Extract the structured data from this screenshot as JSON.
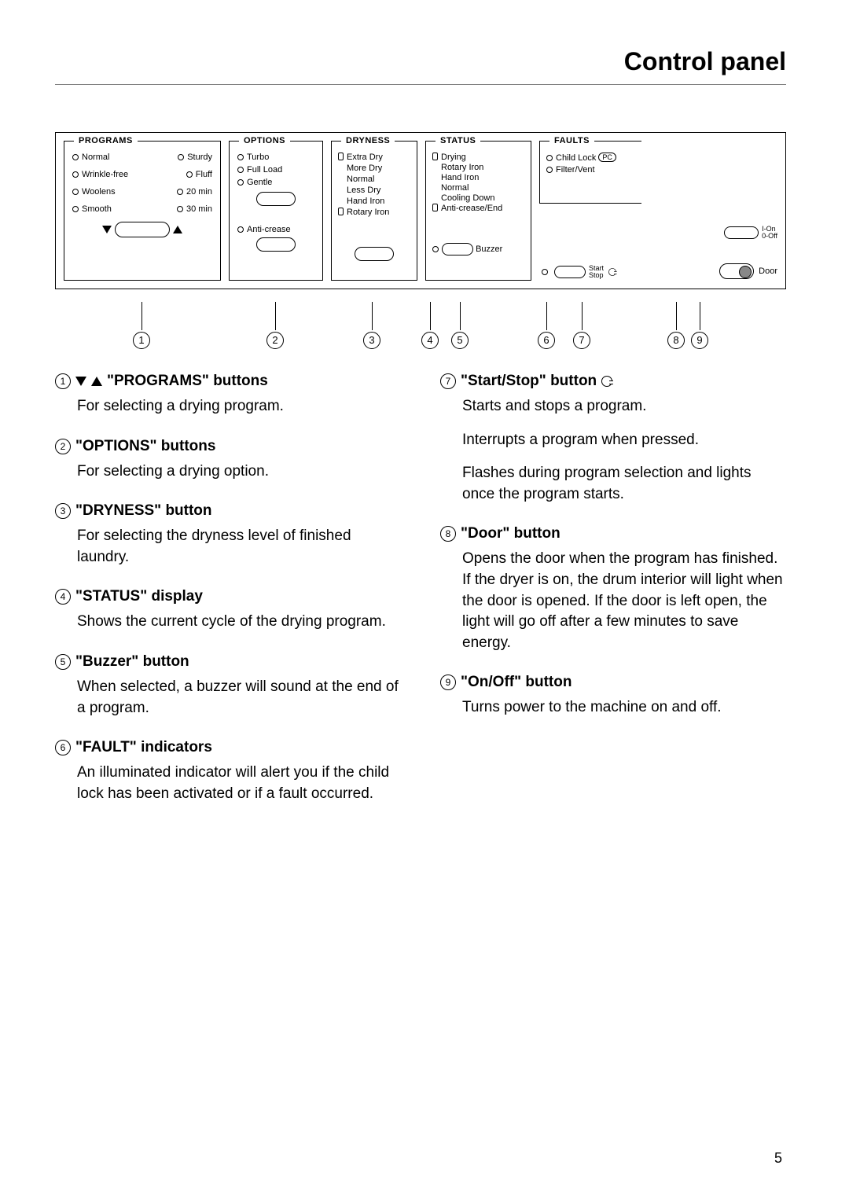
{
  "title": "Control panel",
  "pageNumber": "5",
  "diagram": {
    "programs": {
      "header": "PROGRAMS",
      "rows": [
        [
          "Normal",
          "Sturdy"
        ],
        [
          "Wrinkle-free",
          "Fluff"
        ],
        [
          "Woolens",
          "20 min"
        ],
        [
          "Smooth",
          "30 min"
        ]
      ]
    },
    "options": {
      "header": "OPTIONS",
      "items": [
        "Turbo",
        "Full Load",
        "Gentle"
      ],
      "anticrease": "Anti-crease"
    },
    "dryness": {
      "header": "DRYNESS",
      "items": [
        "Extra Dry",
        "More Dry",
        "Normal",
        "Less Dry",
        "Hand Iron",
        "Rotary Iron"
      ]
    },
    "status": {
      "header": "STATUS",
      "items": [
        "Drying",
        "Rotary Iron",
        "Hand Iron",
        "Normal",
        "Cooling Down",
        "Anti-crease/End"
      ],
      "buzzer": "Buzzer"
    },
    "faults": {
      "header": "FAULTS",
      "childlock": "Child Lock",
      "pc": "PC",
      "filter": "Filter/Vent",
      "startstop": "Start\nStop",
      "onoff_on": "I-On",
      "onoff_off": "0-Off",
      "door": "Door"
    }
  },
  "callouts": [
    "1",
    "2",
    "3",
    "4",
    "5",
    "6",
    "7",
    "8",
    "9"
  ],
  "legend": {
    "left": [
      {
        "num": "1",
        "title": "\"PROGRAMS\" buttons",
        "hasArrows": true,
        "body": [
          "For selecting a drying program."
        ]
      },
      {
        "num": "2",
        "title": "\"OPTIONS\" buttons",
        "body": [
          "For selecting a drying option."
        ]
      },
      {
        "num": "3",
        "title": "\"DRYNESS\" button",
        "body": [
          "For selecting the dryness level of finished laundry."
        ]
      },
      {
        "num": "4",
        "title": "\"STATUS\" display",
        "body": [
          "Shows the current cycle of the drying program."
        ]
      },
      {
        "num": "5",
        "title": "\"Buzzer\" button",
        "body": [
          "When selected, a buzzer will sound at the end of a program."
        ]
      },
      {
        "num": "6",
        "title": "\"FAULT\" indicators",
        "body": [
          "An illuminated indicator will alert you if the child lock has been activated or if a fault occurred."
        ]
      }
    ],
    "right": [
      {
        "num": "7",
        "title": "\"Start/Stop\" button",
        "hasSS": true,
        "body": [
          "Starts and stops a program.",
          "Interrupts a program when pressed.",
          "Flashes during program selection and lights once the program starts."
        ]
      },
      {
        "num": "8",
        "title": "\"Door\" button",
        "body": [
          "Opens the door when the program has finished. If the dryer is on, the drum interior will light when the door is opened. If the door is left open, the light will go off after a few minutes to save energy."
        ]
      },
      {
        "num": "9",
        "title": "\"On/Off\" button",
        "body": [
          "Turns power to the machine on and off."
        ]
      }
    ]
  }
}
